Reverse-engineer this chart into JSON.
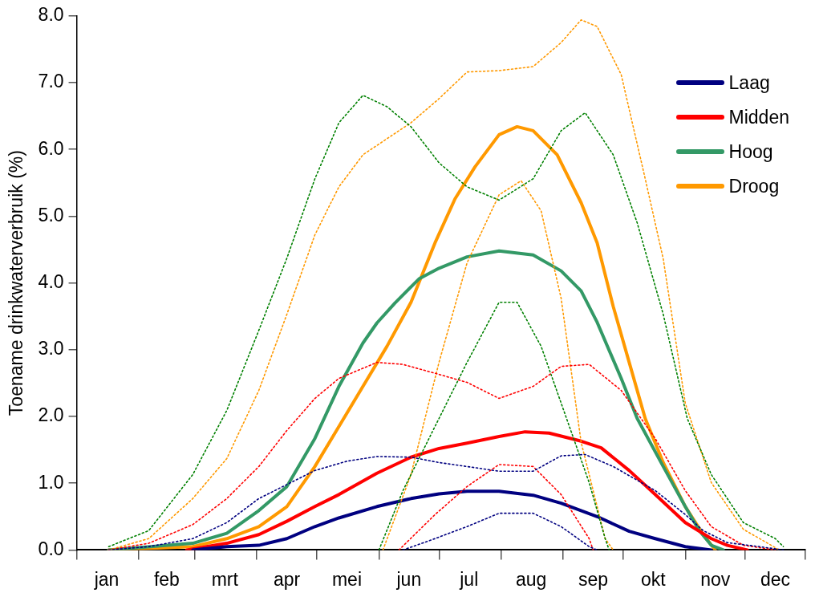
{
  "chart_data": {
    "type": "line",
    "ylabel": "Toename drinkwaterverbruik (%)",
    "xlim": [
      "--01-01",
      "--12-31"
    ],
    "xticks": [
      {
        "value": "--01-01",
        "label": null
      },
      {
        "value": "--01-16",
        "label": "jan"
      },
      {
        "value": "--02-01",
        "label": null
      },
      {
        "value": "--02-15",
        "label": "feb"
      },
      {
        "value": "--03-01",
        "label": null
      },
      {
        "value": "--03-16",
        "label": "mrt"
      },
      {
        "value": "--04-01",
        "label": null
      },
      {
        "value": "--04-16",
        "label": "apr"
      },
      {
        "value": "--05-01",
        "label": null
      },
      {
        "value": "--05-16",
        "label": "mei"
      },
      {
        "value": "--06-01",
        "label": null
      },
      {
        "value": "--06-16",
        "label": "jun"
      },
      {
        "value": "--07-01",
        "label": null
      },
      {
        "value": "--07-16",
        "label": "jul"
      },
      {
        "value": "--08-01",
        "label": null
      },
      {
        "value": "--08-16",
        "label": "aug"
      },
      {
        "value": "--09-01",
        "label": null
      },
      {
        "value": "--09-16",
        "label": "sep"
      },
      {
        "value": "--10-01",
        "label": null
      },
      {
        "value": "--10-16",
        "label": "okt"
      },
      {
        "value": "--11-01",
        "label": null
      },
      {
        "value": "--11-16",
        "label": "nov"
      },
      {
        "value": "--12-01",
        "label": null
      },
      {
        "value": "--12-16",
        "label": "dec"
      },
      {
        "value": "--12-31",
        "label": null
      }
    ],
    "ylim": [
      0,
      8
    ],
    "yticks": [
      {
        "value": 0,
        "label": "0.0"
      },
      {
        "value": 1,
        "label": "1.0"
      },
      {
        "value": 2,
        "label": "2.0"
      },
      {
        "value": 3,
        "label": "3.0"
      },
      {
        "value": 4,
        "label": "4.0"
      },
      {
        "value": 5,
        "label": "5.0"
      },
      {
        "value": 6,
        "label": "6.0"
      },
      {
        "value": 7,
        "label": "7.0"
      },
      {
        "value": 8,
        "label": "8.0"
      }
    ],
    "grid": false,
    "legend": "top right",
    "marker": "none",
    "series": [
      {
        "line_style": "dotted",
        "color": "#000080",
        "x": [
          "--01-17",
          "--02-06",
          "--02-28",
          "--03-17",
          "--04-02",
          "--04-16",
          "--04-30",
          "--05-16",
          "--05-31",
          "--06-17",
          "--07-01",
          "--07-15",
          "--07-31",
          "--08-17",
          "--08-31",
          "--09-12",
          "--09-26",
          "--10-17",
          "--11-01",
          "--11-10",
          "--11-22",
          "--12-08",
          "--12-20"
        ],
        "values": [
          0,
          0.05,
          0.17,
          0.41,
          0.77,
          0.98,
          1.19,
          1.33,
          1.4,
          1.39,
          1.31,
          1.25,
          1.18,
          1.18,
          1.41,
          1.43,
          1.25,
          0.89,
          0.53,
          0.29,
          0.11,
          0.05,
          0
        ]
      },
      {
        "line_style": "dotted",
        "color": "#000080",
        "x": [
          "--06-13",
          "--06-29",
          "--07-15",
          "--07-31",
          "--08-17",
          "--08-31",
          "--09-14",
          "--09-18"
        ],
        "values": [
          0,
          0.17,
          0.35,
          0.55,
          0.55,
          0.35,
          0.05,
          0
        ]
      },
      {
        "line_style": "dotted",
        "color": "#ff0000",
        "x": [
          "--01-17",
          "--02-06",
          "--02-28",
          "--03-17",
          "--04-02",
          "--04-16",
          "--04-30",
          "--05-12",
          "--05-31",
          "--06-13",
          "--07-01",
          "--07-15",
          "--07-31",
          "--08-17",
          "--08-31",
          "--09-14",
          "--09-30",
          "--10-17",
          "--11-01",
          "--11-14",
          "--11-30",
          "--12-16"
        ],
        "values": [
          0,
          0.1,
          0.38,
          0.77,
          1.25,
          1.79,
          2.27,
          2.57,
          2.81,
          2.78,
          2.63,
          2.51,
          2.27,
          2.45,
          2.75,
          2.78,
          2.39,
          1.67,
          0.89,
          0.35,
          0.07,
          0
        ]
      },
      {
        "line_style": "dotted",
        "color": "#ff0000",
        "x": [
          "--06-11",
          "--06-29",
          "--07-15",
          "--07-31",
          "--08-17",
          "--08-31",
          "--09-14",
          "--09-16"
        ],
        "values": [
          0,
          0.53,
          0.95,
          1.28,
          1.25,
          0.83,
          0.17,
          0
        ]
      },
      {
        "line_style": "dotted",
        "color": "#008000",
        "x": [
          "--01-17",
          "--02-06",
          "--02-28",
          "--03-17",
          "--04-02",
          "--04-16",
          "--04-30",
          "--05-12",
          "--05-24",
          "--06-05",
          "--06-17",
          "--07-01",
          "--07-15",
          "--07-31",
          "--08-17",
          "--08-31",
          "--09-12",
          "--09-26",
          "--10-08",
          "--10-21",
          "--11-02",
          "--11-14",
          "--11-30",
          "--12-16",
          "--12-20"
        ],
        "values": [
          0.05,
          0.29,
          1.13,
          2.09,
          3.29,
          4.37,
          5.56,
          6.4,
          6.81,
          6.64,
          6.34,
          5.8,
          5.44,
          5.24,
          5.56,
          6.28,
          6.55,
          5.92,
          4.9,
          3.53,
          1.97,
          1.13,
          0.41,
          0.17,
          0.05
        ]
      },
      {
        "line_style": "dotted",
        "color": "#008000",
        "x": [
          "--06-01",
          "--06-13",
          "--06-29",
          "--07-15",
          "--07-31",
          "--08-09",
          "--08-21",
          "--08-31",
          "--09-14",
          "--09-22",
          "--09-24"
        ],
        "values": [
          0,
          0.89,
          1.85,
          2.81,
          3.71,
          3.71,
          3.05,
          2.2,
          1.01,
          0.17,
          0
        ]
      },
      {
        "line_style": "dotted",
        "color": "#ff9900",
        "x": [
          "--01-17",
          "--02-06",
          "--02-28",
          "--03-17",
          "--04-02",
          "--04-16",
          "--04-30",
          "--05-12",
          "--05-24",
          "--06-05",
          "--06-17",
          "--07-01",
          "--07-15",
          "--07-31",
          "--08-17",
          "--08-31",
          "--09-10",
          "--09-18",
          "--09-30",
          "--10-12",
          "--10-21",
          "--11-01",
          "--11-14",
          "--11-30",
          "--12-18"
        ],
        "values": [
          0,
          0.17,
          0.77,
          1.37,
          2.39,
          3.53,
          4.72,
          5.44,
          5.92,
          6.16,
          6.4,
          6.76,
          7.16,
          7.18,
          7.24,
          7.6,
          7.94,
          7.84,
          7.12,
          5.56,
          4.36,
          2.2,
          1.01,
          0.31,
          0
        ]
      },
      {
        "line_style": "dotted",
        "color": "#ff9900",
        "x": [
          "--06-03",
          "--06-17",
          "--07-01",
          "--07-15",
          "--07-31",
          "--08-11",
          "--08-21",
          "--08-31",
          "--09-10",
          "--09-22",
          "--09-26"
        ],
        "values": [
          0,
          1.13,
          2.81,
          4.3,
          5.32,
          5.53,
          5.08,
          3.77,
          1.61,
          0.17,
          0
        ]
      },
      {
        "name": "Laag",
        "line_style": "solid",
        "color": "#000080",
        "x": [
          "--02-28",
          "--03-17",
          "--04-02",
          "--04-16",
          "--04-30",
          "--05-12",
          "--05-31",
          "--06-17",
          "--07-01",
          "--07-15",
          "--07-31",
          "--08-17",
          "--08-31",
          "--09-18",
          "--10-04",
          "--10-17",
          "--11-01",
          "--11-14"
        ],
        "values": [
          0,
          0.05,
          0.07,
          0.17,
          0.35,
          0.48,
          0.65,
          0.77,
          0.84,
          0.88,
          0.88,
          0.82,
          0.7,
          0.5,
          0.28,
          0.17,
          0.05,
          0
        ]
      },
      {
        "name": "Midden",
        "line_style": "solid",
        "color": "#ff0000",
        "x": [
          "--02-25",
          "--03-17",
          "--04-02",
          "--04-16",
          "--04-30",
          "--05-12",
          "--05-31",
          "--06-17",
          "--07-01",
          "--07-15",
          "--07-31",
          "--08-13",
          "--08-25",
          "--09-10",
          "--09-20",
          "--10-04",
          "--10-17",
          "--11-01",
          "--11-14",
          "--11-22",
          "--12-02"
        ],
        "values": [
          0,
          0.1,
          0.23,
          0.43,
          0.65,
          0.83,
          1.15,
          1.39,
          1.52,
          1.6,
          1.7,
          1.77,
          1.75,
          1.63,
          1.53,
          1.19,
          0.83,
          0.41,
          0.17,
          0.07,
          0
        ]
      },
      {
        "name": "Hoog",
        "line_style": "solid",
        "color": "#339966",
        "x": [
          "--01-17",
          "--02-28",
          "--03-17",
          "--04-02",
          "--04-16",
          "--04-30",
          "--05-12",
          "--05-24",
          "--05-31",
          "--06-09",
          "--06-21",
          "--07-01",
          "--07-15",
          "--07-31",
          "--08-17",
          "--08-31",
          "--09-10",
          "--09-18",
          "--09-30",
          "--10-08",
          "--10-21",
          "--11-01",
          "--11-08",
          "--11-14",
          "--11-20"
        ],
        "values": [
          0,
          0.1,
          0.25,
          0.59,
          0.95,
          1.67,
          2.45,
          3.1,
          3.4,
          3.7,
          4.06,
          4.22,
          4.39,
          4.48,
          4.42,
          4.18,
          3.88,
          3.41,
          2.57,
          1.97,
          1.25,
          0.65,
          0.29,
          0.07,
          0
        ]
      },
      {
        "name": "Droog",
        "line_style": "solid",
        "color": "#ff9900",
        "x": [
          "--01-17",
          "--02-28",
          "--03-17",
          "--04-02",
          "--04-16",
          "--04-30",
          "--05-12",
          "--05-24",
          "--06-05",
          "--06-17",
          "--06-29",
          "--07-09",
          "--07-19",
          "--07-31",
          "--08-09",
          "--08-17",
          "--08-29",
          "--09-10",
          "--09-18",
          "--09-26",
          "--10-04",
          "--10-12",
          "--10-21",
          "--11-01",
          "--11-10",
          "--11-16"
        ],
        "values": [
          0,
          0.05,
          0.17,
          0.35,
          0.65,
          1.25,
          1.85,
          2.45,
          3.05,
          3.71,
          4.6,
          5.26,
          5.74,
          6.22,
          6.34,
          6.28,
          5.92,
          5.2,
          4.6,
          3.65,
          2.81,
          1.97,
          1.31,
          0.65,
          0.23,
          0
        ]
      }
    ]
  }
}
